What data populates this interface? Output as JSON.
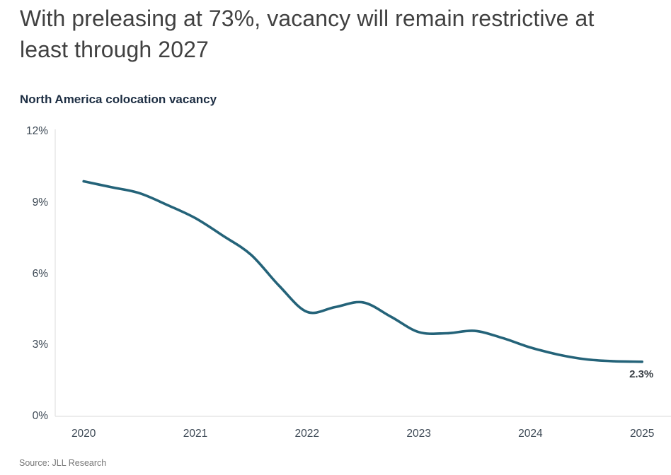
{
  "header": {
    "title": "With preleasing at 73%, vacancy will remain restrictive at least through 2027"
  },
  "chart": {
    "subtitle": "North America colocation vacancy",
    "end_label": "2.3%"
  },
  "chart_data": {
    "type": "line",
    "title": "North America colocation vacancy",
    "xlabel": "",
    "ylabel": "",
    "xlim": [
      2019.75,
      2025.26
    ],
    "ylim": [
      0,
      12
    ],
    "grid": false,
    "legend": "none",
    "line_color": "#246379",
    "axis_color": "#e5e5e5",
    "y_ticks": [
      {
        "value": 12,
        "label": "12%"
      },
      {
        "value": 9,
        "label": "9%"
      },
      {
        "value": 6,
        "label": "6%"
      },
      {
        "value": 3,
        "label": "3%"
      },
      {
        "value": 0,
        "label": "0%"
      }
    ],
    "x_ticks": [
      {
        "value": 2020,
        "label": "2020"
      },
      {
        "value": 2021,
        "label": "2021"
      },
      {
        "value": 2022,
        "label": "2022"
      },
      {
        "value": 2023,
        "label": "2023"
      },
      {
        "value": 2024,
        "label": "2024"
      },
      {
        "value": 2025,
        "label": "2025"
      }
    ],
    "series": [
      {
        "name": "North America colocation vacancy",
        "points": [
          [
            2020.0,
            9.9
          ],
          [
            2020.25,
            9.65
          ],
          [
            2020.5,
            9.4
          ],
          [
            2020.75,
            8.9
          ],
          [
            2021.0,
            8.35
          ],
          [
            2021.25,
            7.6
          ],
          [
            2021.5,
            6.8
          ],
          [
            2021.75,
            5.5
          ],
          [
            2022.0,
            4.4
          ],
          [
            2022.25,
            4.6
          ],
          [
            2022.5,
            4.8
          ],
          [
            2022.75,
            4.2
          ],
          [
            2023.0,
            3.55
          ],
          [
            2023.25,
            3.5
          ],
          [
            2023.5,
            3.6
          ],
          [
            2023.75,
            3.3
          ],
          [
            2024.0,
            2.9
          ],
          [
            2024.25,
            2.6
          ],
          [
            2024.5,
            2.4
          ],
          [
            2024.75,
            2.32
          ],
          [
            2025.0,
            2.3
          ]
        ]
      }
    ],
    "annotations": [
      {
        "text": "2.3%",
        "x": 2025,
        "y": 2.3
      }
    ]
  },
  "footer": {
    "source": "Source: JLL Research"
  }
}
